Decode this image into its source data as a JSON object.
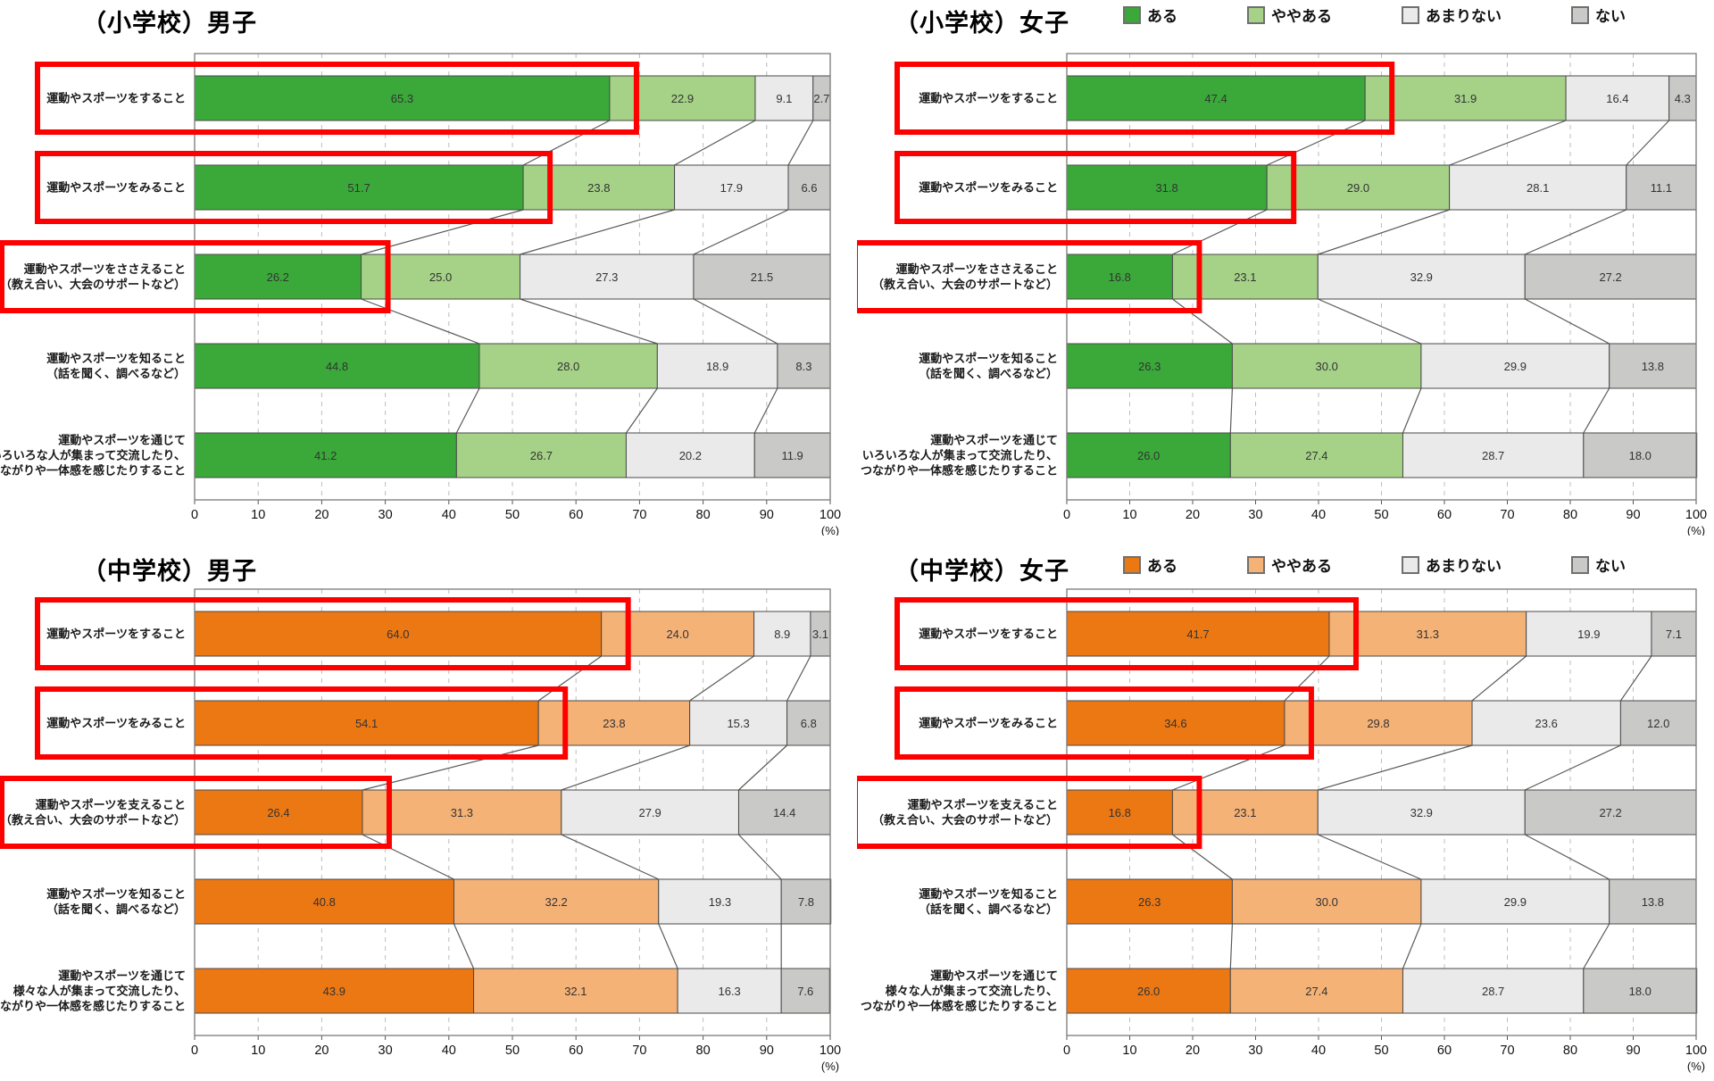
{
  "chart_data": {
    "type": "bar",
    "subtype": "horizontal-stacked-percentage",
    "unit": "(%)",
    "x_ticks": [
      0,
      10,
      20,
      30,
      40,
      50,
      60,
      70,
      80,
      90,
      100
    ],
    "xlim": [
      0,
      100
    ],
    "grid": "dashed-vertical",
    "legend": [
      "ある",
      "ややある",
      "あまりない",
      "ない"
    ],
    "legend_position": "top-right",
    "palettes": {
      "green": [
        "#3AA93A",
        "#A5D287",
        "#EAEAEA",
        "#C9C9C8"
      ],
      "orange": [
        "#EC7814",
        "#F5B276",
        "#EAEAEA",
        "#C9C9C8"
      ]
    },
    "highlight_color": "#FF0000",
    "charts": [
      {
        "title": "（小学校）男子",
        "palette": "green",
        "categories": [
          [
            "運動やスポーツをすること"
          ],
          [
            "運動やスポーツをみること"
          ],
          [
            "運動やスポーツをささえること",
            "（教え合い、大会のサポートなど）"
          ],
          [
            "運動やスポーツを知ること",
            "（話を聞く、調べるなど）"
          ],
          [
            "運動やスポーツを通じて",
            "いろいろな人が集まって交流したり、",
            "つながりや一体感を感じたりすること"
          ]
        ],
        "rows": [
          [
            65.3,
            22.9,
            9.1,
            2.7
          ],
          [
            51.7,
            23.8,
            17.9,
            6.6
          ],
          [
            26.2,
            25.0,
            27.3,
            21.5
          ],
          [
            44.8,
            28.0,
            18.9,
            8.3
          ],
          [
            41.2,
            26.7,
            20.2,
            11.9
          ]
        ],
        "highlighted_rows": [
          0,
          1,
          2
        ]
      },
      {
        "title": "（小学校）女子",
        "palette": "green",
        "categories": [
          [
            "運動やスポーツをすること"
          ],
          [
            "運動やスポーツをみること"
          ],
          [
            "運動やスポーツをささえること",
            "（教え合い、大会のサポートなど）"
          ],
          [
            "運動やスポーツを知ること",
            "（話を聞く、調べるなど）"
          ],
          [
            "運動やスポーツを通じて",
            "いろいろな人が集まって交流したり、",
            "つながりや一体感を感じたりすること"
          ]
        ],
        "rows": [
          [
            47.4,
            31.9,
            16.4,
            4.3
          ],
          [
            31.8,
            29.0,
            28.1,
            11.1
          ],
          [
            16.8,
            23.1,
            32.9,
            27.2
          ],
          [
            26.3,
            30.0,
            29.9,
            13.8
          ],
          [
            26.0,
            27.4,
            28.7,
            18.0
          ]
        ],
        "highlighted_rows": [
          0,
          1,
          2
        ]
      },
      {
        "title": "（中学校）男子",
        "palette": "orange",
        "categories": [
          [
            "運動やスポーツをすること"
          ],
          [
            "運動やスポーツをみること"
          ],
          [
            "運動やスポーツを支えること",
            "（教え合い、大会のサポートなど）"
          ],
          [
            "運動やスポーツを知ること",
            "（話を聞く、調べるなど）"
          ],
          [
            "運動やスポーツを通じて",
            "様々な人が集まって交流したり、",
            "つながりや一体感を感じたりすること"
          ]
        ],
        "rows": [
          [
            64.0,
            24.0,
            8.9,
            3.1
          ],
          [
            54.1,
            23.8,
            15.3,
            6.8
          ],
          [
            26.4,
            31.3,
            27.9,
            14.4
          ],
          [
            40.8,
            32.2,
            19.3,
            7.8
          ],
          [
            43.9,
            32.1,
            16.3,
            7.6
          ]
        ],
        "highlighted_rows": [
          0,
          1,
          2
        ]
      },
      {
        "title": "（中学校）女子",
        "palette": "orange",
        "categories": [
          [
            "運動やスポーツをすること"
          ],
          [
            "運動やスポーツをみること"
          ],
          [
            "運動やスポーツを支えること",
            "（教え合い、大会のサポートなど）"
          ],
          [
            "運動やスポーツを知ること",
            "（話を聞く、調べるなど）"
          ],
          [
            "運動やスポーツを通じて",
            "様々な人が集まって交流したり、",
            "つながりや一体感を感じたりすること"
          ]
        ],
        "rows": [
          [
            41.7,
            31.3,
            19.9,
            7.1
          ],
          [
            34.6,
            29.8,
            23.6,
            12.0
          ],
          [
            16.8,
            23.1,
            32.9,
            27.2
          ],
          [
            26.3,
            30.0,
            29.9,
            13.8
          ],
          [
            26.0,
            27.4,
            28.7,
            18.0
          ]
        ],
        "highlighted_rows": [
          0,
          1,
          2
        ]
      }
    ]
  }
}
